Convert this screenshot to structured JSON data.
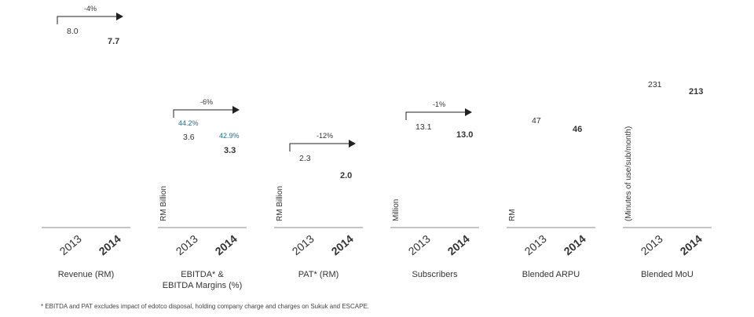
{
  "footnote": "* EBITDA and PAT excludes impact of edotco disposal, holding company charge and charges on Sukuk and ESCAPE.",
  "colors": {
    "text": "#333333",
    "axis": "#888888",
    "margin_label": "#1a6fa8"
  },
  "chart_data": [
    {
      "type": "bar",
      "title": "Revenue (RM)",
      "ylabel": "",
      "categories": [
        "2013",
        "2014"
      ],
      "values": [
        8.0,
        7.7
      ],
      "value_labels": [
        "8.0",
        "7.7"
      ],
      "change_label": "-4%"
    },
    {
      "type": "bar",
      "title": "EBITDA* & EBITDA Margins (%)",
      "ylabel": "RM Billion",
      "categories": [
        "2013",
        "2014"
      ],
      "values": [
        3.6,
        3.3
      ],
      "value_labels": [
        "3.6",
        "3.3"
      ],
      "margin_values": [
        44.2,
        42.9
      ],
      "margin_labels": [
        "44.2%",
        "42.9%"
      ],
      "change_label": "-6%"
    },
    {
      "type": "bar",
      "title": "PAT* (RM)",
      "ylabel": "RM Billion",
      "categories": [
        "2013",
        "2014"
      ],
      "values": [
        2.3,
        2.0
      ],
      "value_labels": [
        "2.3",
        "2.0"
      ],
      "change_label": "-12%"
    },
    {
      "type": "bar",
      "title": "Subscribers",
      "ylabel": "Million",
      "categories": [
        "2013",
        "2014"
      ],
      "values": [
        13.1,
        13.0
      ],
      "value_labels": [
        "13.1",
        "13.0"
      ],
      "change_label": "-1%"
    },
    {
      "type": "bar",
      "title": "Blended ARPU",
      "ylabel": "RM",
      "categories": [
        "2013",
        "2014"
      ],
      "values": [
        47,
        46
      ],
      "value_labels": [
        "47",
        "46"
      ],
      "change_label": ""
    },
    {
      "type": "bar",
      "title": "Blended MoU",
      "ylabel": "(Minutes of use/sub/month)",
      "categories": [
        "2013",
        "2014"
      ],
      "values": [
        231,
        213
      ],
      "value_labels": [
        "231",
        "213"
      ],
      "change_label": ""
    }
  ]
}
